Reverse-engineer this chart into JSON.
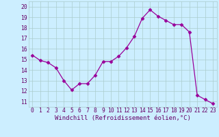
{
  "x": [
    0,
    1,
    2,
    3,
    4,
    5,
    6,
    7,
    8,
    9,
    10,
    11,
    12,
    13,
    14,
    15,
    16,
    17,
    18,
    19,
    20,
    21,
    22,
    23
  ],
  "y": [
    15.4,
    14.9,
    14.7,
    14.2,
    13.0,
    12.1,
    12.7,
    12.7,
    13.5,
    14.8,
    14.8,
    15.3,
    16.1,
    17.2,
    18.9,
    19.7,
    19.1,
    18.7,
    18.3,
    18.3,
    17.6,
    11.6,
    11.2,
    10.8
  ],
  "line_color": "#990099",
  "marker": "D",
  "marker_size": 2.5,
  "bg_color": "#cceeff",
  "grid_color": "#aacccc",
  "ylim": [
    10.5,
    20.5
  ],
  "yticks": [
    11,
    12,
    13,
    14,
    15,
    16,
    17,
    18,
    19,
    20
  ],
  "xticks": [
    0,
    1,
    2,
    3,
    4,
    5,
    6,
    7,
    8,
    9,
    10,
    11,
    12,
    13,
    14,
    15,
    16,
    17,
    18,
    19,
    20,
    21,
    22,
    23
  ],
  "xlabel": "Windchill (Refroidissement éolien,°C)",
  "xlabel_fontsize": 6.5,
  "tick_fontsize": 5.8,
  "tick_color": "#660066",
  "spine_color": "#aacccc"
}
